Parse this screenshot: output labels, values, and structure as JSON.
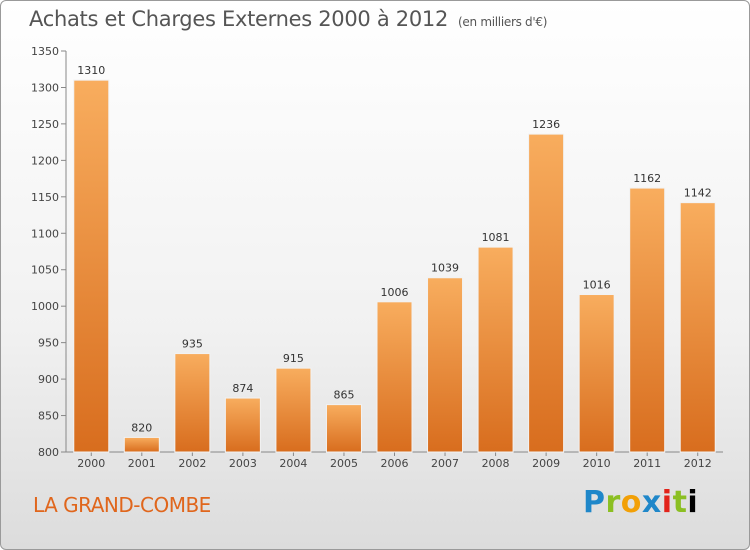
{
  "header": {
    "title": "Achats et Charges Externes 2000 à 2012",
    "unit": "(en milliers d'€)"
  },
  "commune": "LA GRAND-COMBE",
  "logo": {
    "letters": [
      "P",
      "r",
      "o",
      "x",
      "i",
      "t",
      "i"
    ]
  },
  "colors": {
    "bar_top": "#f8ad5e",
    "bar_bottom": "#d86d1e",
    "commune_text": "#e0661c"
  },
  "chart_data": {
    "type": "bar",
    "title": "Achats et Charges Externes 2000 à 2012",
    "subtitle": "(en milliers d'€)",
    "categories": [
      "2000",
      "2001",
      "2002",
      "2003",
      "2004",
      "2005",
      "2006",
      "2007",
      "2008",
      "2009",
      "2010",
      "2011",
      "2012"
    ],
    "values": [
      1310,
      820,
      935,
      874,
      915,
      865,
      1006,
      1039,
      1081,
      1236,
      1016,
      1162,
      1142
    ],
    "ylim": [
      800,
      1350
    ],
    "yticks": [
      800,
      850,
      900,
      950,
      1000,
      1050,
      1100,
      1150,
      1200,
      1250,
      1300,
      1350
    ],
    "grid": false,
    "data_labels": true
  }
}
